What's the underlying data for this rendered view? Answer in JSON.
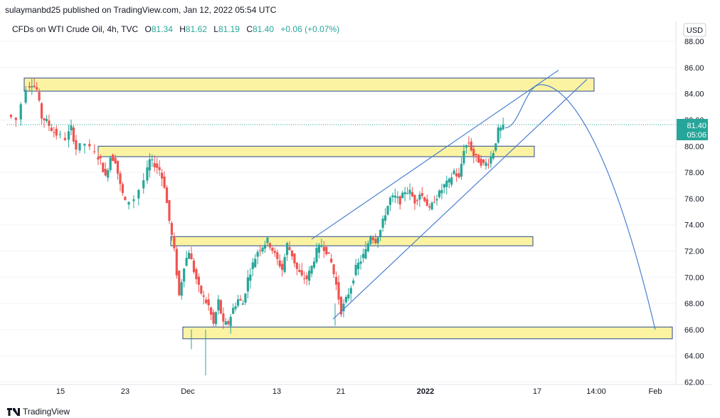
{
  "header": {
    "publisher": "sulaymanbd25 published on TradingView.com, Jan 12, 2022 05:54 UTC"
  },
  "legend": {
    "symbol": "CFDs on WTI Crude Oil, 4h, TVC",
    "open_label": "O",
    "open": "81.34",
    "high_label": "H",
    "high": "81.62",
    "low_label": "L",
    "low": "81.19",
    "close_label": "C",
    "close": "81.40",
    "change": "+0.06 (+0.07%)"
  },
  "currency_button": "USD",
  "price_label": {
    "price": "81.40",
    "countdown": "05:06"
  },
  "footer": {
    "brand": "TradingView"
  },
  "colors": {
    "up": "#26a69a",
    "down": "#ef5350",
    "zone_fill": "#fbf3a2",
    "zone_border": "#2a4a8c",
    "line": "#4a7fcf"
  },
  "chart_data": {
    "type": "candlestick",
    "y_ticks": [
      "62.00",
      "64.00",
      "66.00",
      "68.00",
      "70.00",
      "72.00",
      "74.00",
      "76.00",
      "78.00",
      "80.00",
      "82.00",
      "84.00",
      "86.00",
      "88.00"
    ],
    "ylim": [
      62,
      88
    ],
    "x_ticks": [
      "15",
      "23",
      "Dec",
      "13",
      "21",
      "2022",
      "17",
      "14:00",
      "Feb"
    ],
    "last_price": 81.4,
    "price_path": [
      [
        0,
        82.4
      ],
      [
        2,
        82.0
      ],
      [
        4,
        84.5
      ],
      [
        5,
        84.8
      ],
      [
        6,
        84.3
      ],
      [
        7,
        82.2
      ],
      [
        8,
        81.9
      ],
      [
        9,
        81.3
      ],
      [
        10,
        80.9
      ],
      [
        12,
        80.6
      ],
      [
        13,
        81.4
      ],
      [
        14,
        79.8
      ],
      [
        16,
        80.2
      ],
      [
        18,
        79.4
      ],
      [
        19,
        78.9
      ],
      [
        20,
        77.6
      ],
      [
        21,
        79.2
      ],
      [
        22,
        78.9
      ],
      [
        23,
        77.0
      ],
      [
        24,
        75.7
      ],
      [
        26,
        76.0
      ],
      [
        28,
        77.4
      ],
      [
        29,
        78.9
      ],
      [
        30,
        78.6
      ],
      [
        31,
        78.2
      ],
      [
        32,
        77.0
      ],
      [
        33,
        74.3
      ],
      [
        34,
        72.0
      ],
      [
        35,
        68.6
      ],
      [
        36,
        70.9
      ],
      [
        37,
        72.0
      ],
      [
        38,
        70.5
      ],
      [
        39,
        69.2
      ],
      [
        40,
        68.4
      ],
      [
        41,
        67.8
      ],
      [
        42,
        66.4
      ],
      [
        43,
        68.2
      ],
      [
        44,
        66.4
      ],
      [
        45,
        66.5
      ],
      [
        46,
        67.6
      ],
      [
        47,
        68.3
      ],
      [
        48,
        68.0
      ],
      [
        49,
        69.9
      ],
      [
        50,
        71.0
      ],
      [
        51,
        72.0
      ],
      [
        52,
        72.4
      ],
      [
        53,
        72.8
      ],
      [
        54,
        72.1
      ],
      [
        55,
        71.3
      ],
      [
        56,
        70.6
      ],
      [
        57,
        72.5
      ],
      [
        58,
        71.7
      ],
      [
        59,
        70.6
      ],
      [
        60,
        70.0
      ],
      [
        61,
        69.9
      ],
      [
        62,
        70.8
      ],
      [
        63,
        72.0
      ],
      [
        64,
        72.5
      ],
      [
        65,
        72.0
      ],
      [
        66,
        71.1
      ],
      [
        67,
        69.4
      ],
      [
        68,
        67.4
      ],
      [
        69,
        68.3
      ],
      [
        70,
        69.3
      ],
      [
        71,
        70.7
      ],
      [
        72,
        71.3
      ],
      [
        73,
        72.0
      ],
      [
        74,
        73.2
      ],
      [
        75,
        72.8
      ],
      [
        76,
        73.6
      ],
      [
        77,
        74.9
      ],
      [
        78,
        76.0
      ],
      [
        79,
        76.1
      ],
      [
        80,
        75.8
      ],
      [
        81,
        76.6
      ],
      [
        82,
        76.5
      ],
      [
        83,
        75.8
      ],
      [
        84,
        76.4
      ],
      [
        85,
        76.0
      ],
      [
        86,
        75.1
      ],
      [
        87,
        75.9
      ],
      [
        88,
        76.4
      ],
      [
        89,
        77.0
      ],
      [
        90,
        77.3
      ],
      [
        91,
        78.1
      ],
      [
        92,
        77.5
      ],
      [
        93,
        79.8
      ],
      [
        94,
        80.3
      ],
      [
        95,
        79.3
      ],
      [
        96,
        78.9
      ],
      [
        97,
        78.6
      ],
      [
        98,
        78.8
      ],
      [
        99,
        79.6
      ],
      [
        100,
        81.2
      ],
      [
        101,
        81.4
      ]
    ],
    "zones": [
      [
        84.2,
        85.2
      ],
      [
        79.2,
        80.0
      ],
      [
        72.4,
        73.1
      ],
      [
        65.3,
        66.2
      ]
    ],
    "trend_channel": {
      "upper": [
        [
          72.9
        ],
        [
          85.8
        ]
      ],
      "lower": [
        [
          66.8
        ],
        [
          85.1
        ]
      ]
    },
    "projection": {
      "from": 81.4,
      "peak": 84.7,
      "to": 66.0
    }
  }
}
